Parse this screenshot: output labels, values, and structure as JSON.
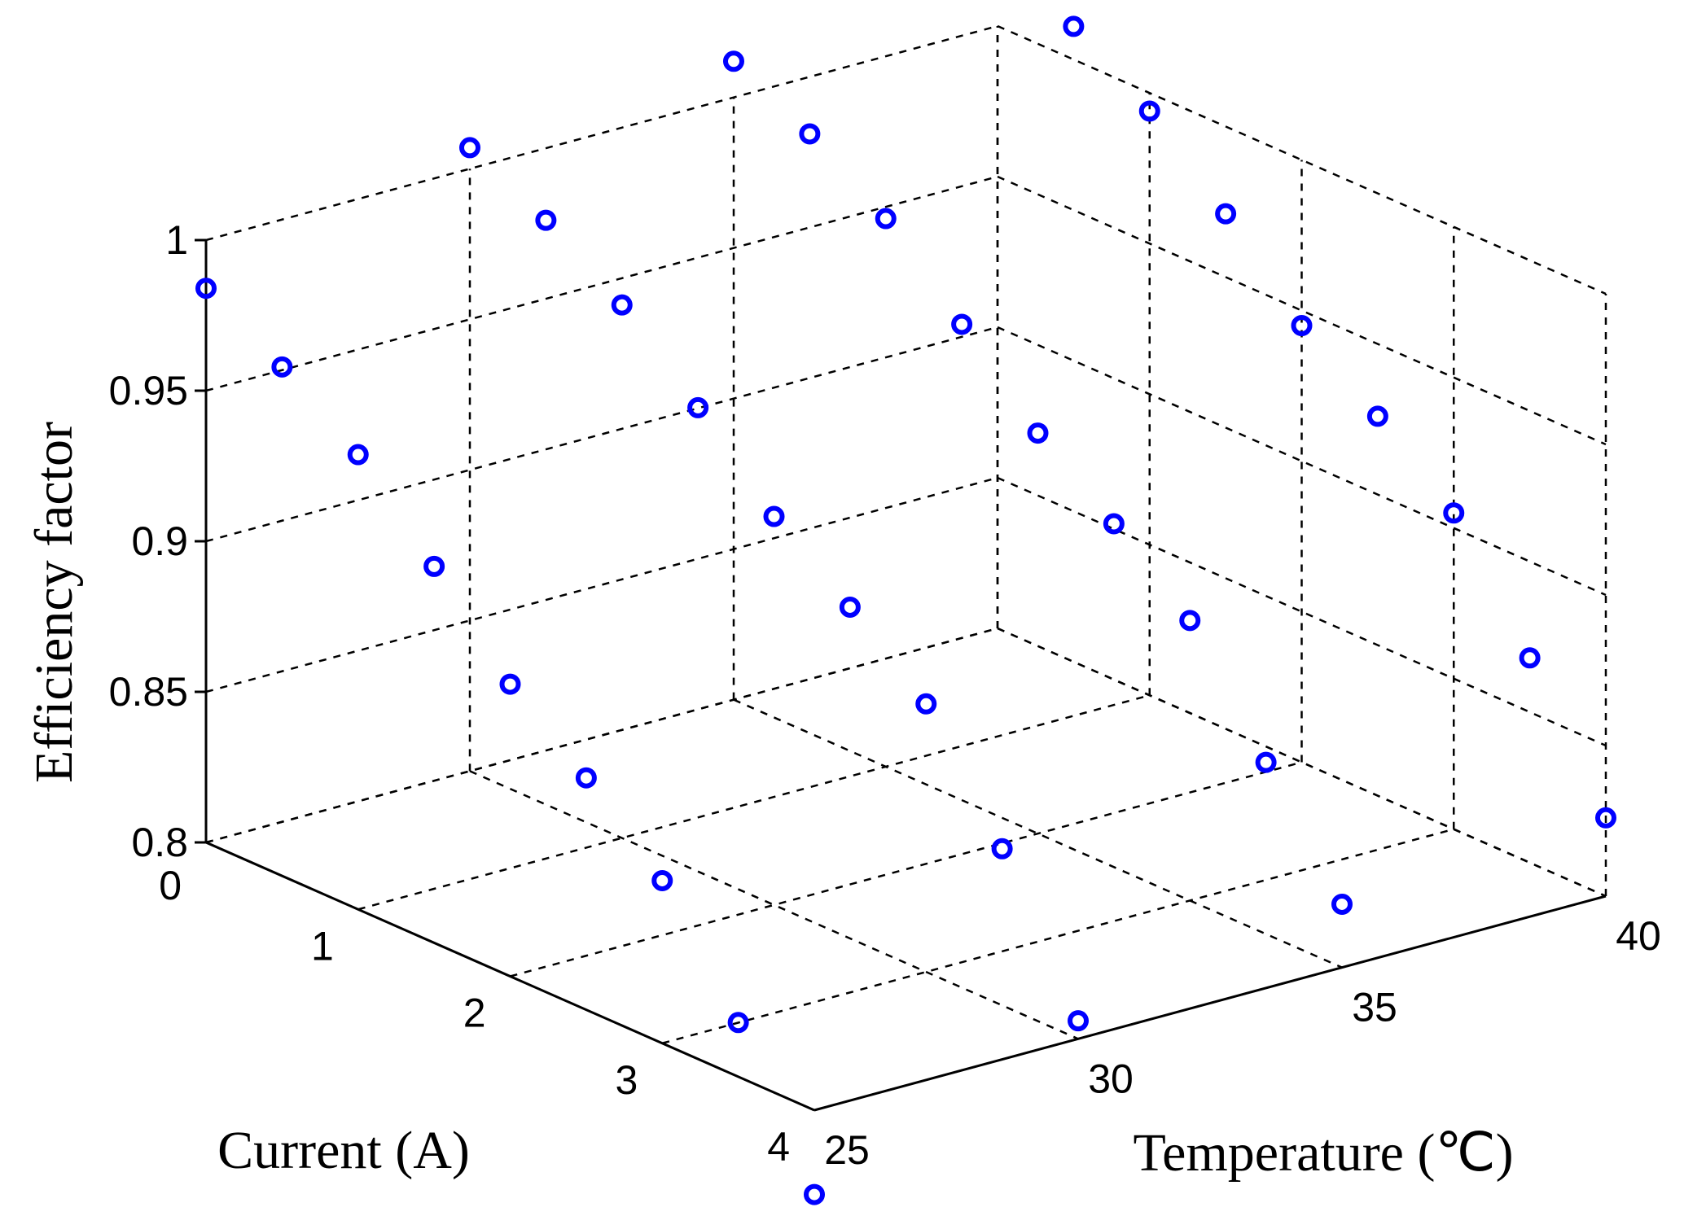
{
  "chart_data": {
    "type": "scatter3d",
    "xlabel": "Temperature (℃)",
    "ylabel": "Current (A)",
    "zlabel": "Efficiency factor",
    "xlim": [
      25,
      40
    ],
    "ylim": [
      0,
      4
    ],
    "zlim": [
      0.8,
      1.0
    ],
    "xticks": [
      "25",
      "30",
      "35",
      "40"
    ],
    "yticks": [
      "0",
      "1",
      "2",
      "3",
      "4"
    ],
    "zticks": [
      "0.8",
      "0.85",
      "0.9",
      "0.95",
      "1"
    ],
    "grid": true,
    "marker": "circle",
    "colors": {
      "series": "#0000ff",
      "grid": "#000000"
    },
    "points": [
      {
        "x": 25,
        "y": 0.0,
        "z": 0.984
      },
      {
        "x": 25,
        "y": 0.5,
        "z": 0.969
      },
      {
        "x": 25,
        "y": 1.0,
        "z": 0.951
      },
      {
        "x": 25,
        "y": 1.5,
        "z": 0.925
      },
      {
        "x": 25,
        "y": 2.0,
        "z": 0.897
      },
      {
        "x": 25,
        "y": 2.5,
        "z": 0.877
      },
      {
        "x": 25,
        "y": 3.0,
        "z": 0.854
      },
      {
        "x": 25,
        "y": 3.5,
        "z": 0.818
      },
      {
        "x": 25,
        "y": 4.0,
        "z": 0.772
      },
      {
        "x": 30,
        "y": 0.0,
        "z": 1.007
      },
      {
        "x": 30,
        "y": 0.5,
        "z": 0.994
      },
      {
        "x": 30,
        "y": 1.0,
        "z": 0.977
      },
      {
        "x": 30,
        "y": 1.5,
        "z": 0.954
      },
      {
        "x": 30,
        "y": 2.0,
        "z": 0.929
      },
      {
        "x": 30,
        "y": 2.5,
        "z": 0.91
      },
      {
        "x": 30,
        "y": 3.0,
        "z": 0.889
      },
      {
        "x": 30,
        "y": 3.5,
        "z": 0.852
      },
      {
        "x": 30,
        "y": 4.0,
        "z": 0.806
      },
      {
        "x": 35,
        "y": 0.0,
        "z": 1.012
      },
      {
        "x": 35,
        "y": 0.5,
        "z": 0.999
      },
      {
        "x": 35,
        "y": 1.0,
        "z": 0.982
      },
      {
        "x": 35,
        "y": 1.5,
        "z": 0.958
      },
      {
        "x": 35,
        "y": 2.0,
        "z": 0.933
      },
      {
        "x": 35,
        "y": 2.5,
        "z": 0.914
      },
      {
        "x": 35,
        "y": 3.0,
        "z": 0.893
      },
      {
        "x": 35,
        "y": 3.5,
        "z": 0.857
      },
      {
        "x": 35,
        "y": 4.0,
        "z": 0.821
      },
      {
        "x": 40,
        "y": 0.0,
        "z": 1.024
      },
      {
        "x": 40,
        "y": 0.5,
        "z": 1.011
      },
      {
        "x": 40,
        "y": 1.0,
        "z": 0.994
      },
      {
        "x": 40,
        "y": 1.5,
        "z": 0.971
      },
      {
        "x": 40,
        "y": 2.0,
        "z": 0.945
      },
      {
        "x": 40,
        "y": 2.5,
        "z": 0.926
      },
      {
        "x": 40,
        "y": 3.0,
        "z": 0.905
      },
      {
        "x": 40,
        "y": 3.5,
        "z": 0.868
      },
      {
        "x": 40,
        "y": 4.0,
        "z": 0.826
      }
    ]
  }
}
